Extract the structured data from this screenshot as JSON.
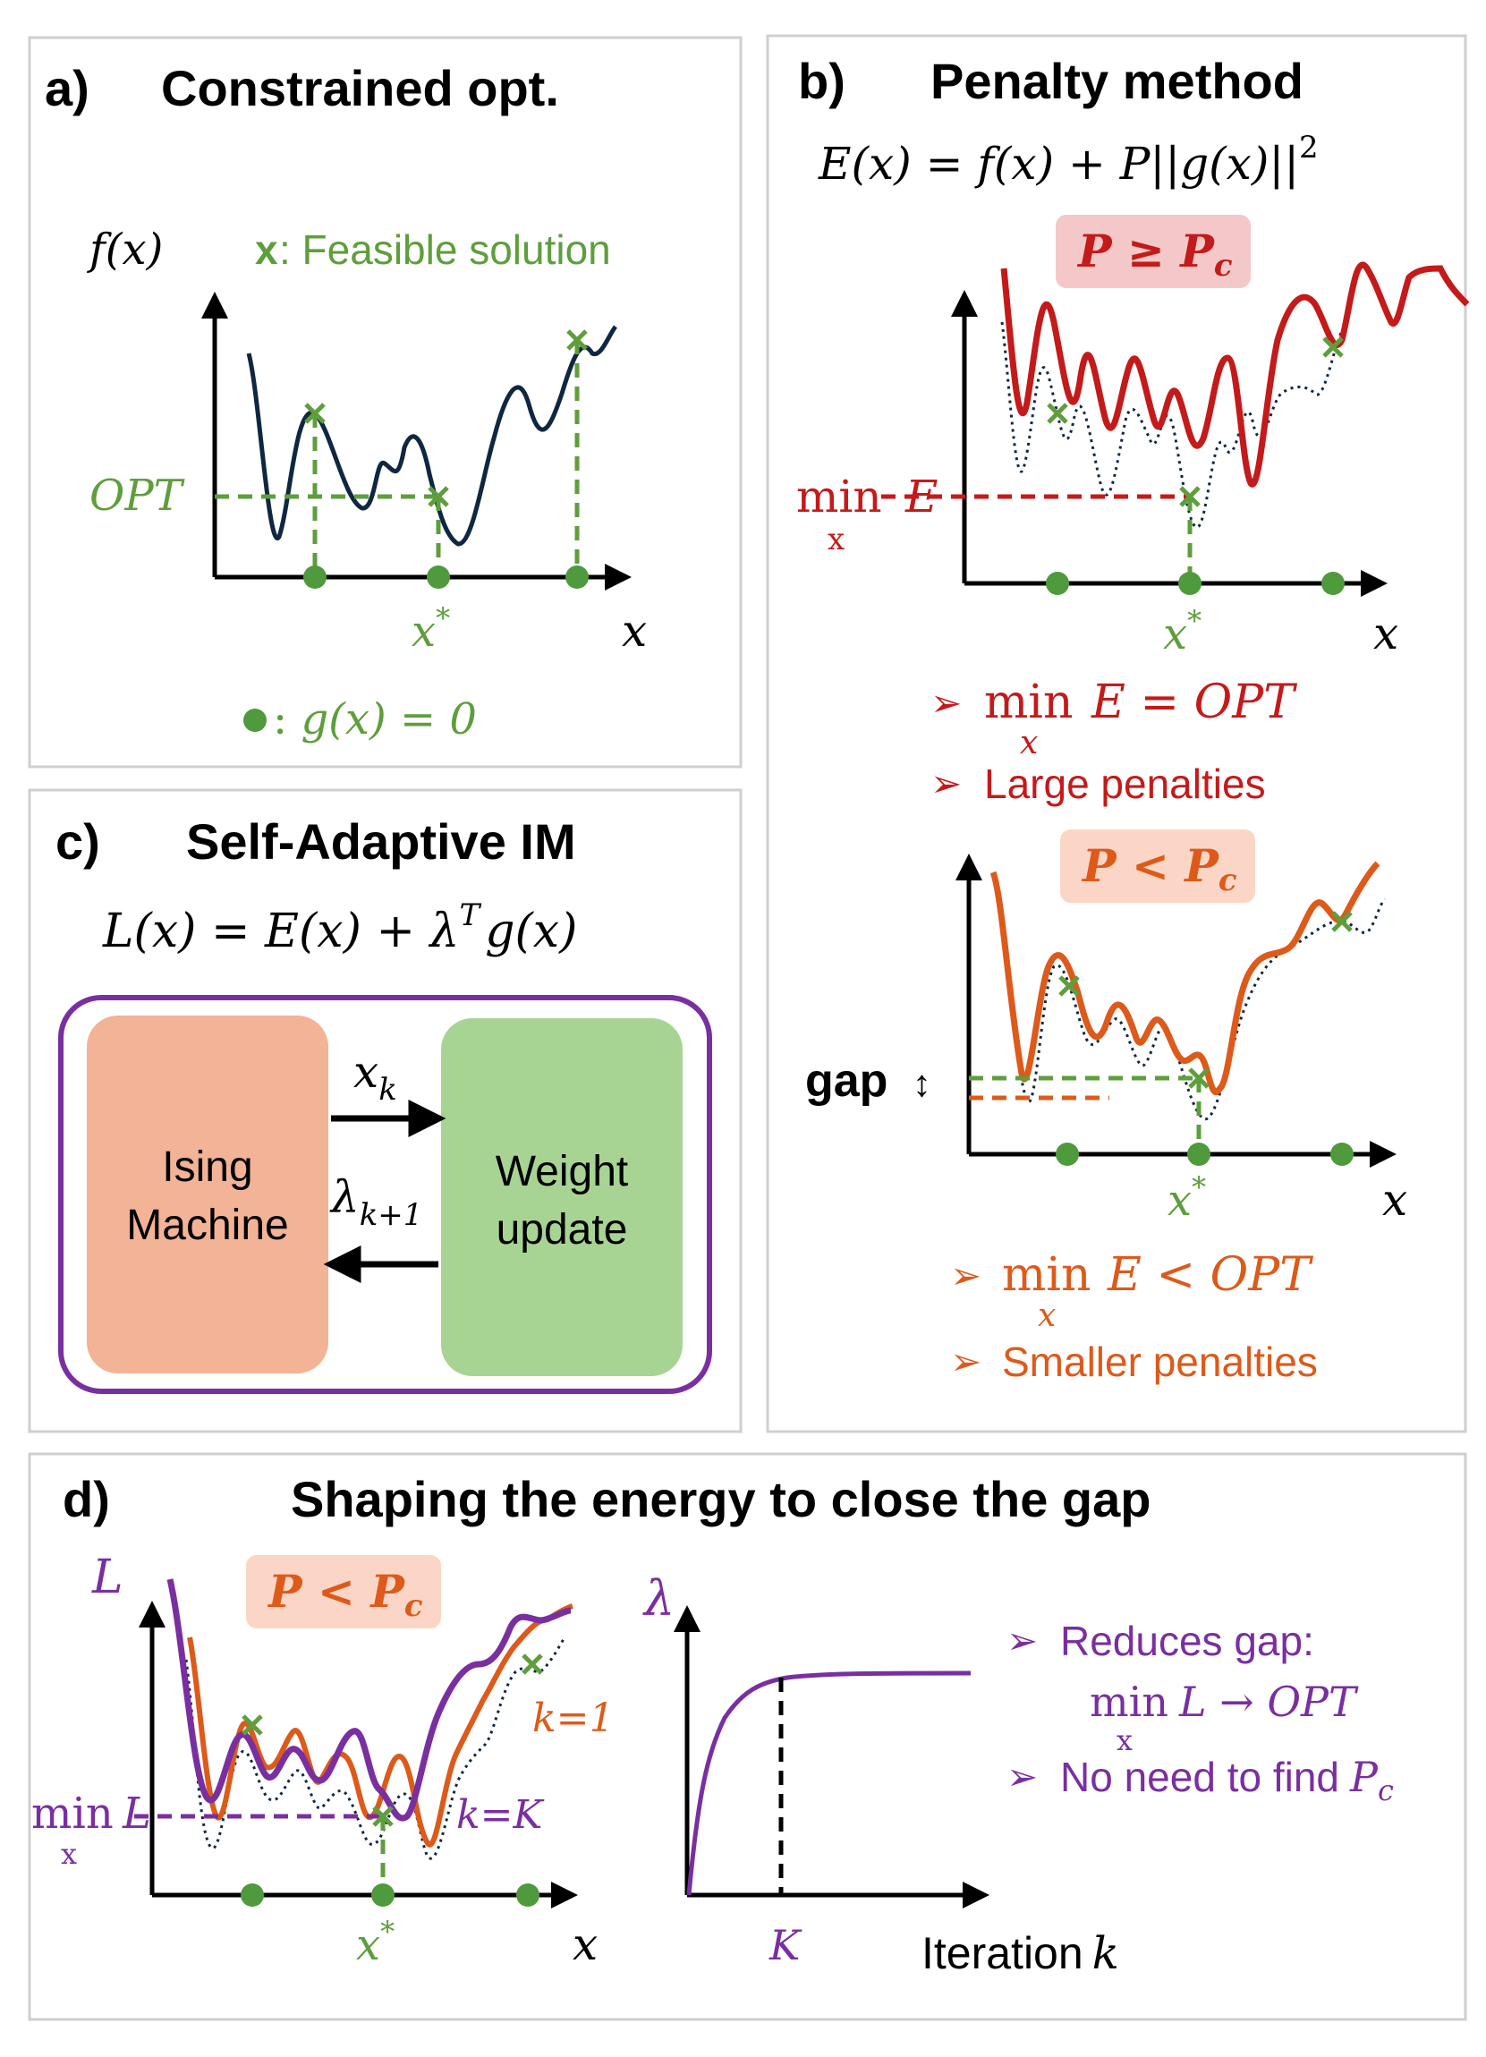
{
  "colors": {
    "dark_curve": "#0f2740",
    "green": "#5e9e3c",
    "green_dot": "#4f9a3c",
    "red": "#c41a1a",
    "orange": "#dd5a1a",
    "purple": "#7a2fa0",
    "salmon_box": "#f2b396",
    "green_box": "#a8d493",
    "red_badge": "#f4c8c8",
    "orange_badge": "#fbd6c6"
  },
  "panel_a": {
    "letter": "a)",
    "title": "Constrained opt.",
    "y_axis_label": "f(x)",
    "legend_marker": "x",
    "legend_text": ": Feasible solution",
    "opt_label": "OPT",
    "x_star": "x",
    "x_star_sup": "*",
    "x_axis_label": "x",
    "constraint_prefix": ": ",
    "constraint_eq": "g(x) = 0"
  },
  "panel_b": {
    "letter": "b)",
    "title": "Penalty method",
    "equation": "E(x) = f(x) + P||g(x)||",
    "equation_sup": "2",
    "badge_large": "P ≥ P",
    "badge_large_sub": "c",
    "min_label": "min",
    "min_sub": "x",
    "min_var": "E",
    "x_star": "x",
    "x_star_sup": "*",
    "x_axis_label": "x",
    "arrow": "➢",
    "bullet1_min": "min",
    "bullet1_sub": "x",
    "bullet1_rest": "E = OPT",
    "bullet2": "Large penalties",
    "badge_small": "P < P",
    "badge_small_sub": "c",
    "gap_label": "gap",
    "gap_arrow": "↕",
    "x_star2": "x",
    "x_star2_sup": "*",
    "x_axis_label2": "x",
    "bullet3_min": "min",
    "bullet3_sub": "x",
    "bullet3_rest": "E < OPT",
    "bullet4": "Smaller penalties"
  },
  "panel_c": {
    "letter": "c)",
    "title": "Self-Adaptive IM",
    "equation": "L(x) = E(x) + λ",
    "equation_sup": "T",
    "equation_tail": "g(x)",
    "box1_line1": "Ising",
    "box1_line2": "Machine",
    "box2_line1": "Weight",
    "box2_line2": "update",
    "arrow_top": "x",
    "arrow_top_sub": "k",
    "arrow_bottom": "λ",
    "arrow_bottom_sub": "k+1"
  },
  "panel_d": {
    "letter": "d)",
    "title": "Shaping the energy to close the gap",
    "y_axis_label": "L",
    "badge": "P < P",
    "badge_sub": "c",
    "k1_label": "k=1",
    "kK_label": "k=K",
    "min_label": "min",
    "min_sub": "x",
    "min_var": "L",
    "x_star": "x",
    "x_star_sup": "*",
    "x_axis_label": "x",
    "lambda_label": "λ",
    "K_label": "K",
    "iteration_label": "Iteration",
    "iteration_var": "k",
    "arrow": "➢",
    "bullet1": "Reduces gap:",
    "bullet1_min": "min",
    "bullet1_sub": "x",
    "bullet1_rest": "L → OPT",
    "bullet2": "No need to find",
    "bullet2_var": "P",
    "bullet2_sub": "c"
  }
}
